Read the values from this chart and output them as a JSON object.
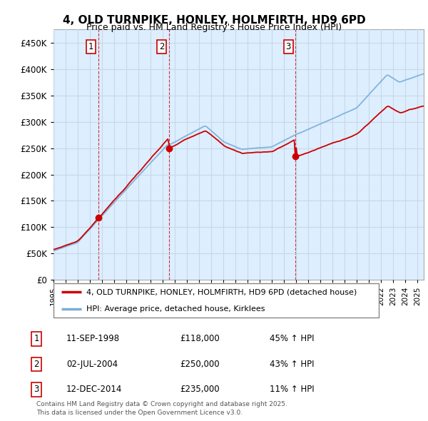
{
  "title": "4, OLD TURNPIKE, HONLEY, HOLMFIRTH, HD9 6PD",
  "subtitle": "Price paid vs. HM Land Registry's House Price Index (HPI)",
  "ylim": [
    0,
    475000
  ],
  "yticks": [
    0,
    50000,
    100000,
    150000,
    200000,
    250000,
    300000,
    350000,
    400000,
    450000
  ],
  "ytick_labels": [
    "£0",
    "£50K",
    "£100K",
    "£150K",
    "£200K",
    "£250K",
    "£300K",
    "£350K",
    "£400K",
    "£450K"
  ],
  "hpi_color": "#7aaed6",
  "price_color": "#cc0000",
  "sale_marker_color": "#cc0000",
  "sale_points": [
    {
      "year": 1998.7,
      "price": 118000,
      "label": "1"
    },
    {
      "year": 2004.5,
      "price": 250000,
      "label": "2"
    },
    {
      "year": 2014.95,
      "price": 235000,
      "label": "3"
    }
  ],
  "vline_color": "#cc0000",
  "grid_color": "#c8d8e8",
  "plot_bg_color": "#ddeeff",
  "background_color": "#ffffff",
  "legend_label_price": "4, OLD TURNPIKE, HONLEY, HOLMFIRTH, HD9 6PD (detached house)",
  "legend_label_hpi": "HPI: Average price, detached house, Kirklees",
  "table_rows": [
    {
      "num": "1",
      "date": "11-SEP-1998",
      "price": "£118,000",
      "change": "45% ↑ HPI"
    },
    {
      "num": "2",
      "date": "02-JUL-2004",
      "price": "£250,000",
      "change": "43% ↑ HPI"
    },
    {
      "num": "3",
      "date": "12-DEC-2014",
      "price": "£235,000",
      "change": "11% ↑ HPI"
    }
  ],
  "footnote": "Contains HM Land Registry data © Crown copyright and database right 2025.\nThis data is licensed under the Open Government Licence v3.0.",
  "xmin": 1995.0,
  "xmax": 2025.5
}
